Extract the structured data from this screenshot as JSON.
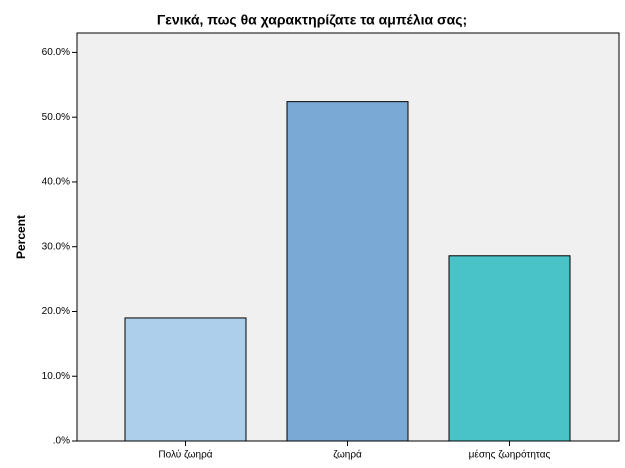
{
  "chart_data": {
    "type": "bar",
    "title": "Γενικά, πως θα χαρακτηρίζατε τα αμπέλια σας;",
    "y_label": "Percent",
    "categories": [
      "Πολύ ζωηρά",
      "ζωηρά",
      "μέσης ζωηρότητας"
    ],
    "values": [
      19.0,
      52.4,
      28.6
    ],
    "colors": [
      "#aecfeb",
      "#7aa9d6",
      "#4ac3c8"
    ],
    "ylim": [
      0,
      63
    ],
    "yticks": [
      {
        "value": 0,
        "label": ".0%"
      },
      {
        "value": 10,
        "label": "10.0%"
      },
      {
        "value": 20,
        "label": "20.0%"
      },
      {
        "value": 30,
        "label": "30.0%"
      },
      {
        "value": 40,
        "label": "40.0%"
      },
      {
        "value": 50,
        "label": "50.0%"
      },
      {
        "value": 60,
        "label": "60.0%"
      }
    ]
  }
}
